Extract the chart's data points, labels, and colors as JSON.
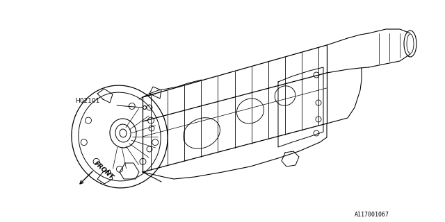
{
  "bg_color": "#ffffff",
  "line_color": "#000000",
  "label_H02101": "H02101",
  "label_front": "FRONT",
  "part_number": "A117001067",
  "fig_width": 6.4,
  "fig_height": 3.2,
  "dpi": 100
}
